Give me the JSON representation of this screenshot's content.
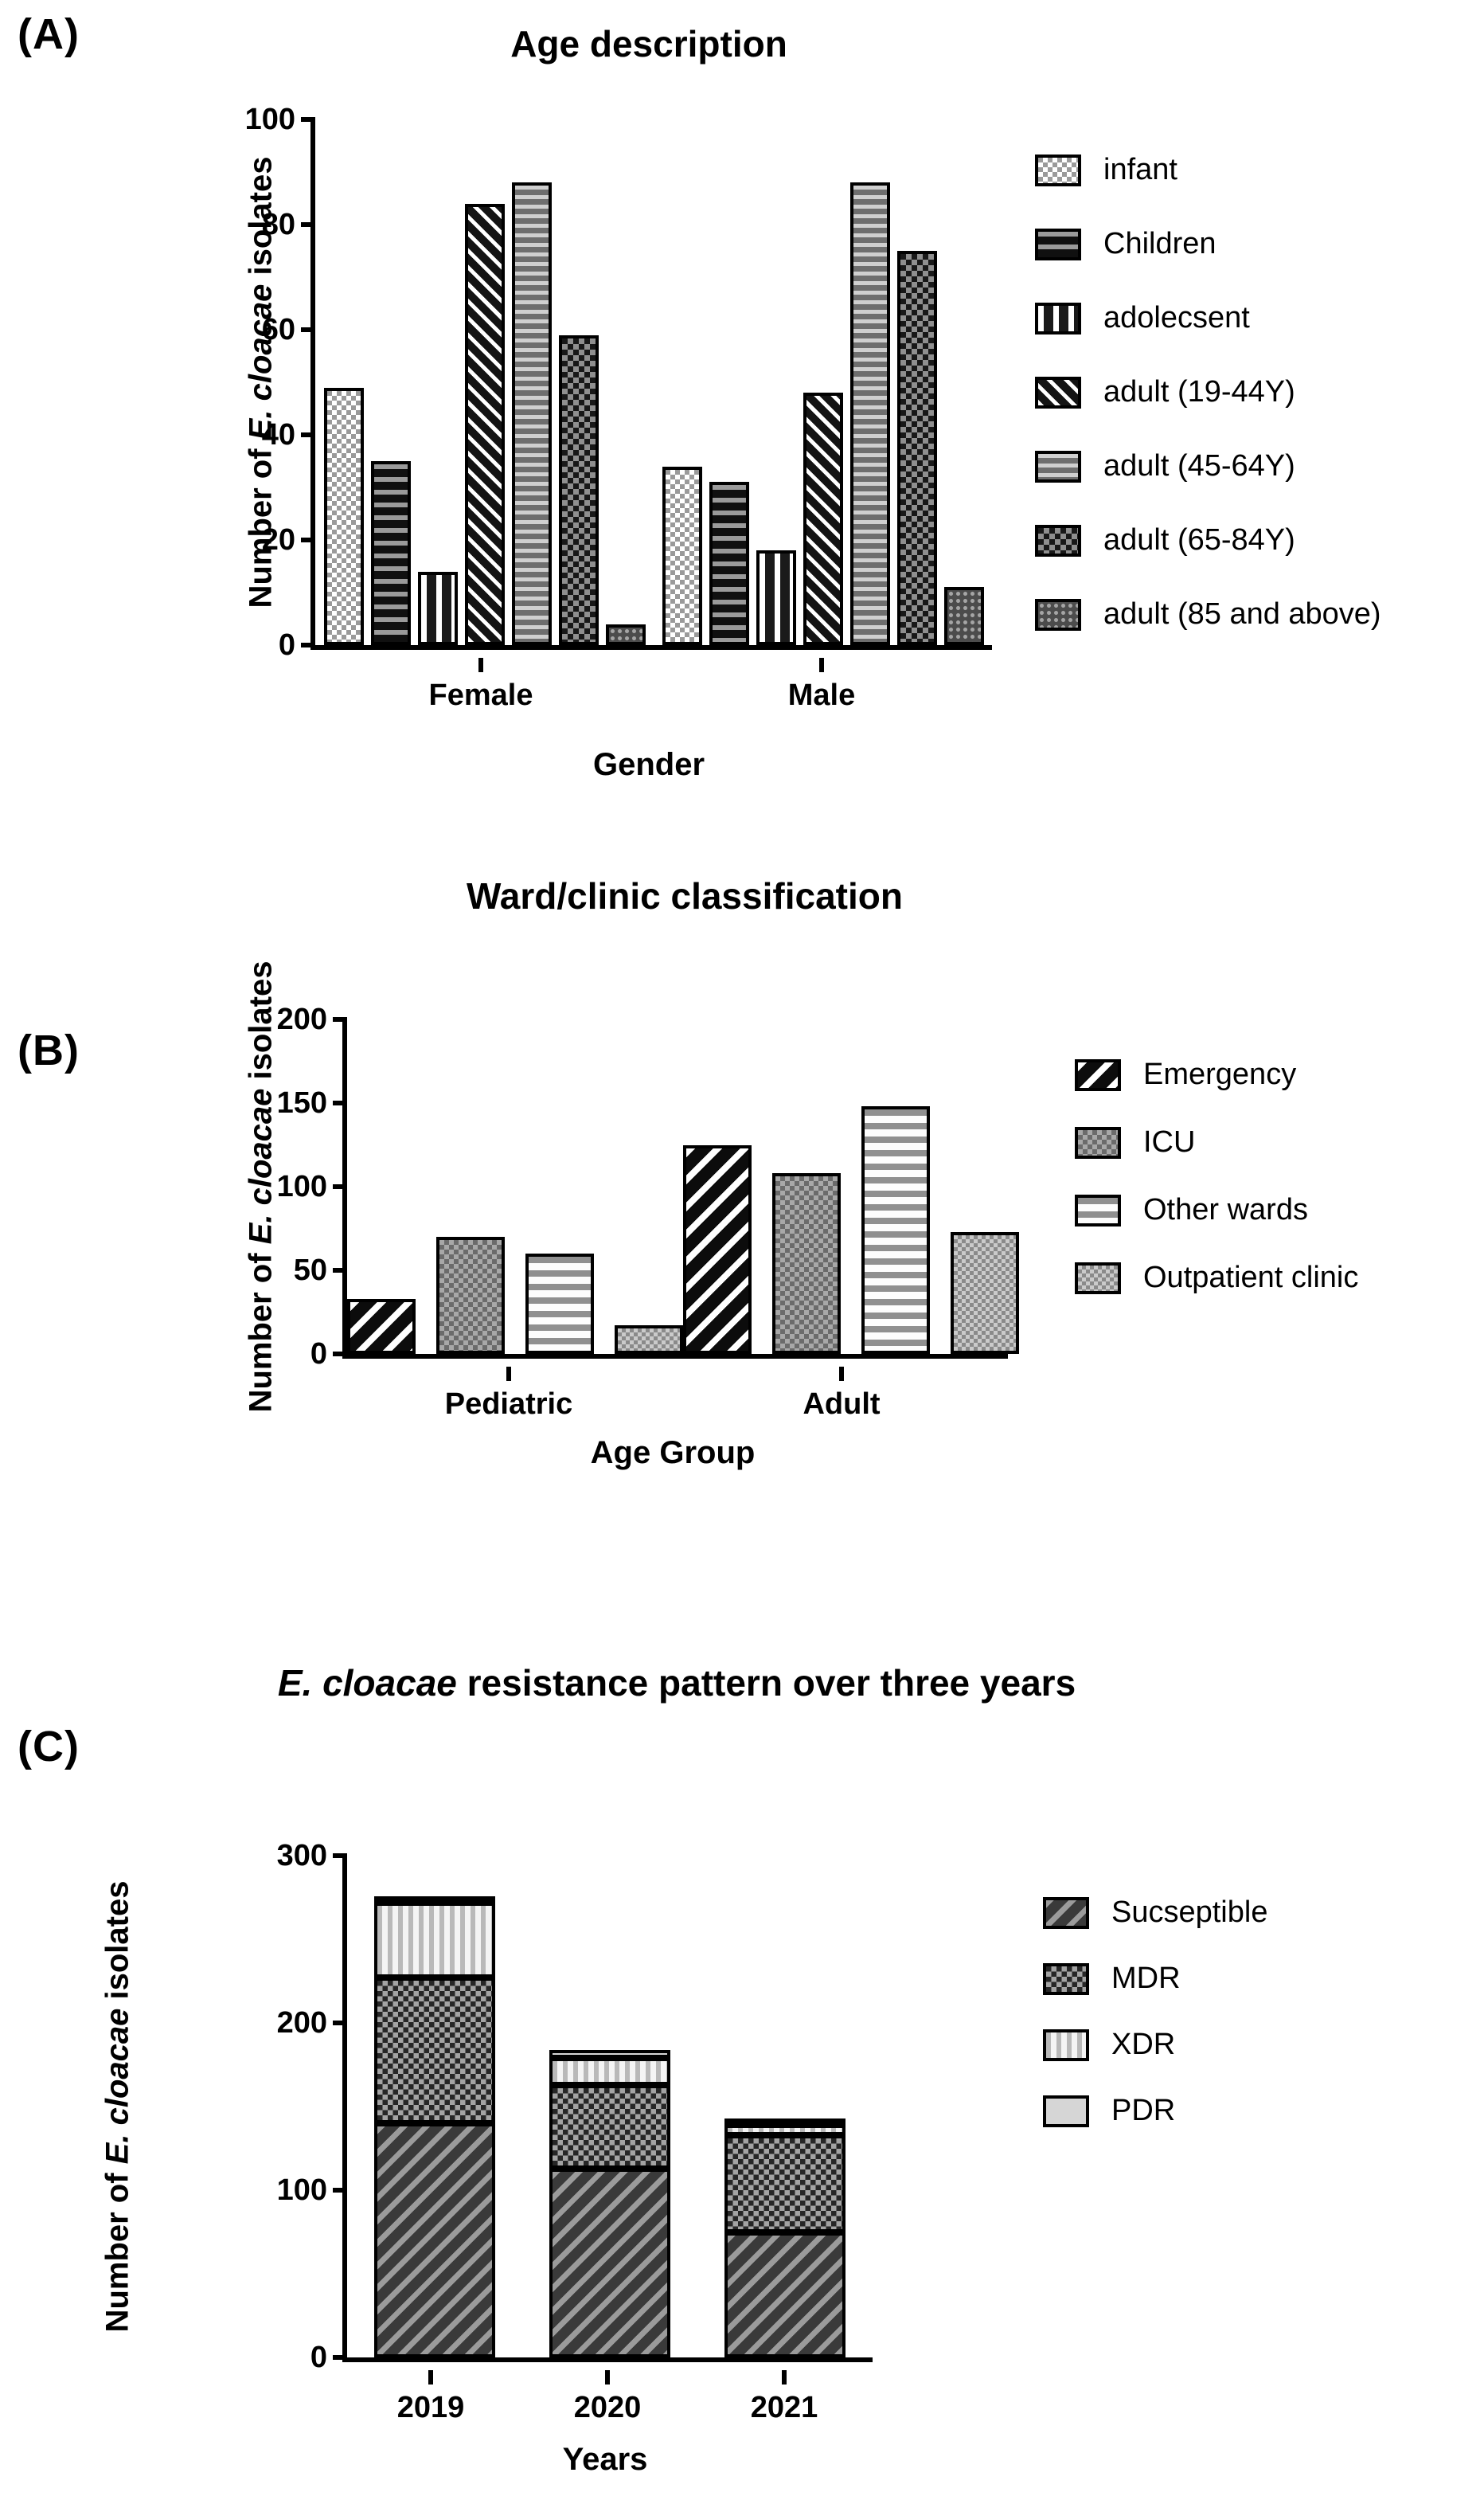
{
  "panels": {
    "a_label": "(A)",
    "b_label": "(B)",
    "c_label": "(C)"
  },
  "chart_data": [
    {
      "type": "bar",
      "bar_mode": "grouped",
      "title": "Age description",
      "title_parts": {
        "italic": "",
        "rest": "Age description"
      },
      "ylabel_parts": {
        "prefix": "Number of ",
        "italic": "E. cloacae",
        "suffix": " isolates"
      },
      "xlabel": "Gender",
      "categories": [
        "Female",
        "Male"
      ],
      "series": [
        {
          "name": "infant",
          "pattern": "light-checker",
          "values": [
            49,
            34
          ]
        },
        {
          "name": "Children",
          "pattern": "dark-hstripes",
          "values": [
            35,
            31
          ]
        },
        {
          "name": "adolecsent",
          "pattern": "dark-vstripes-white",
          "values": [
            14,
            18
          ]
        },
        {
          "name": "adult (19-44Y)",
          "pattern": "dark-diagonal-white",
          "values": [
            84,
            48
          ]
        },
        {
          "name": "adult (45-64Y)",
          "pattern": "gray-hstripes",
          "values": [
            88,
            88
          ]
        },
        {
          "name": "adult (65-84Y)",
          "pattern": "dark-checker",
          "values": [
            59,
            75
          ]
        },
        {
          "name": "adult (85 and above)",
          "pattern": "dark-dots",
          "values": [
            4,
            11
          ]
        }
      ],
      "ylim": [
        0,
        100
      ],
      "yticks": [
        0,
        20,
        40,
        60,
        80,
        100
      ],
      "grid": false,
      "legend_position": "right"
    },
    {
      "type": "bar",
      "bar_mode": "grouped",
      "title": "Ward/clinic classification",
      "title_parts": {
        "italic": "",
        "rest": "Ward/clinic classification"
      },
      "ylabel_parts": {
        "prefix": "Number of ",
        "italic": "E. cloacae",
        "suffix": " isolates"
      },
      "xlabel": "Age Group",
      "categories": [
        "Pediatric",
        "Adult"
      ],
      "series": [
        {
          "name": "Emergency",
          "pattern": "black-diagonal-white",
          "values": [
            33,
            125
          ]
        },
        {
          "name": "ICU",
          "pattern": "gray-checker",
          "values": [
            70,
            108
          ]
        },
        {
          "name": "Other wards",
          "pattern": "white-hstripes-gray",
          "values": [
            60,
            148
          ]
        },
        {
          "name": "Outpatient clinic",
          "pattern": "light-gray-checker",
          "values": [
            17,
            73
          ]
        }
      ],
      "ylim": [
        0,
        200
      ],
      "yticks": [
        0,
        50,
        100,
        150,
        200
      ],
      "grid": false,
      "legend_position": "right"
    },
    {
      "type": "bar",
      "bar_mode": "stacked",
      "title": "E. cloacae resistance pattern over three years",
      "title_parts": {
        "italic": "E. cloacae",
        "rest": " resistance pattern over three years"
      },
      "ylabel_parts": {
        "prefix": "Number of ",
        "italic": "E. cloacae",
        "suffix": " isolates"
      },
      "xlabel": "Years",
      "categories": [
        "2019",
        "2020",
        "2021"
      ],
      "series": [
        {
          "name": "Sucseptible",
          "pattern": "gray-diagonal",
          "values": [
            140,
            113,
            75
          ]
        },
        {
          "name": "MDR",
          "pattern": "dark-checker-dots",
          "values": [
            87,
            50,
            58
          ]
        },
        {
          "name": "XDR",
          "pattern": "white-vstripes-gray",
          "values": [
            45,
            16,
            6
          ]
        },
        {
          "name": "PDR",
          "pattern": "solid-light-gray",
          "values": [
            3,
            5,
            4
          ]
        }
      ],
      "ylim": [
        0,
        300
      ],
      "yticks": [
        0,
        100,
        200,
        300
      ],
      "grid": false,
      "legend_position": "right"
    }
  ]
}
